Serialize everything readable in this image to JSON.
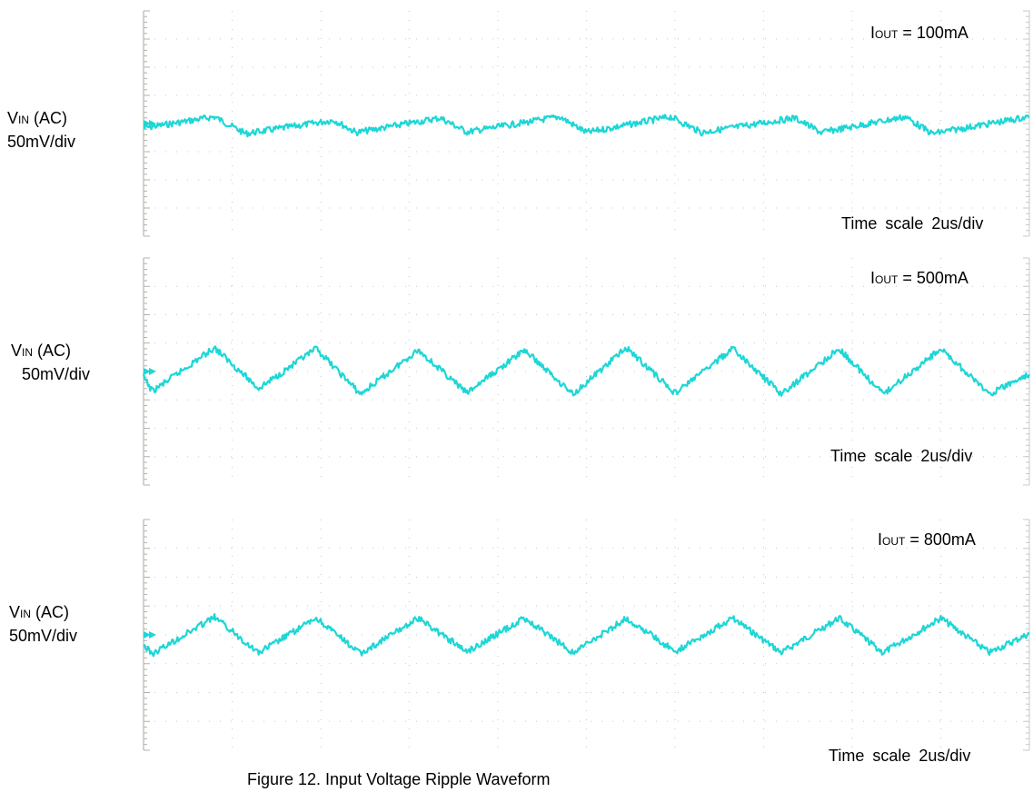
{
  "chart_data": [
    {
      "type": "line",
      "channel_label": {
        "main": "V",
        "sub": "IN",
        "rest": " (AC)"
      },
      "scale_label": "50mV/div",
      "load_label": {
        "main": "I",
        "sub": "OUT",
        "rest": " = 100mA"
      },
      "time_label": "Time  scale  2us/div",
      "trace_color": "#1ed6d6",
      "x_unit": "us",
      "x_per_div": 2,
      "y_unit": "mV",
      "y_per_div": 50,
      "xlim": [
        0,
        20
      ],
      "ylim": [
        -200,
        200
      ],
      "grid": true,
      "series": [
        {
          "x": [
            0,
            1.6,
            2.3,
            4.3,
            4.8,
            6.7,
            7.3,
            9.4,
            10.0,
            11.9,
            12.6,
            14.7,
            15.3,
            17.2,
            17.8,
            20.0
          ],
          "y": [
            -8,
            12,
            -18,
            6,
            -16,
            10,
            -15,
            12,
            -16,
            12,
            -16,
            10,
            -16,
            12,
            -18,
            12
          ]
        }
      ]
    },
    {
      "type": "line",
      "channel_label": {
        "main": "V",
        "sub": "IN",
        "rest": " (AC)"
      },
      "scale_label": "50mV/div",
      "load_label": {
        "main": "I",
        "sub": "OUT",
        "rest": " = 500mA"
      },
      "time_label": "Time  scale  2us/div",
      "trace_color": "#1ed6d6",
      "x_unit": "us",
      "x_per_div": 2,
      "y_unit": "mV",
      "y_per_div": 50,
      "xlim": [
        0,
        20
      ],
      "ylim": [
        -200,
        200
      ],
      "grid": true,
      "series": [
        {
          "x": [
            0,
            0.2,
            1.6,
            2.6,
            3.9,
            4.9,
            6.2,
            7.3,
            8.6,
            9.7,
            10.9,
            12.0,
            13.3,
            14.4,
            15.7,
            16.7,
            18.0,
            19.1,
            20.0
          ],
          "y": [
            -10,
            -35,
            42,
            -30,
            40,
            -40,
            38,
            -38,
            38,
            -40,
            42,
            -38,
            40,
            -40,
            40,
            -40,
            40,
            -40,
            -5
          ]
        }
      ]
    },
    {
      "type": "line",
      "channel_label": {
        "main": "V",
        "sub": "IN",
        "rest": " (AC)"
      },
      "scale_label": "50mV/div",
      "load_label": {
        "main": "I",
        "sub": "OUT",
        "rest": " = 800mA"
      },
      "time_label": "Time  scale  2us/div",
      "trace_color": "#1ed6d6",
      "x_unit": "us",
      "x_per_div": 2,
      "y_unit": "mV",
      "y_per_div": 50,
      "xlim": [
        0,
        20
      ],
      "ylim": [
        -200,
        200
      ],
      "grid": true,
      "series": [
        {
          "x": [
            0,
            0.2,
            1.6,
            2.6,
            3.9,
            4.9,
            6.2,
            7.3,
            8.6,
            9.7,
            10.9,
            12.0,
            13.3,
            14.4,
            15.7,
            16.7,
            18.0,
            19.1,
            20.0
          ],
          "y": [
            -18,
            -33,
            31,
            -31,
            29,
            -33,
            29,
            -29,
            29,
            -31,
            29,
            -29,
            29,
            -31,
            29,
            -31,
            29,
            -31,
            2
          ]
        }
      ]
    }
  ],
  "caption": "Figure 12. Input Voltage Ripple Waveform"
}
